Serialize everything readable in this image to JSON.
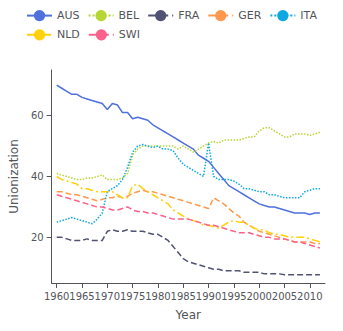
{
  "chart_data": {
    "type": "line",
    "xlabel": "Year",
    "ylabel": "Unionization",
    "xlim": [
      1959,
      2013
    ],
    "ylim": [
      5,
      75
    ],
    "xticks": [
      1960,
      1965,
      1970,
      1975,
      1980,
      1985,
      1990,
      1995,
      2000,
      2005,
      2010
    ],
    "yticks": [
      20,
      40,
      60
    ],
    "grid": false,
    "legend": "top",
    "x": [
      1960,
      1961,
      1962,
      1963,
      1964,
      1965,
      1966,
      1967,
      1968,
      1969,
      1970,
      1971,
      1972,
      1973,
      1974,
      1975,
      1976,
      1977,
      1978,
      1979,
      1980,
      1981,
      1982,
      1983,
      1984,
      1985,
      1986,
      1987,
      1988,
      1989,
      1990,
      1991,
      1992,
      1993,
      1994,
      1995,
      1996,
      1997,
      1998,
      1999,
      2000,
      2001,
      2002,
      2003,
      2004,
      2005,
      2006,
      2007,
      2008,
      2009,
      2010,
      2011,
      2012
    ],
    "series": [
      {
        "name": "AUS",
        "line_style": "solid",
        "values": [
          70,
          69,
          68,
          67,
          67,
          66,
          65.5,
          65,
          64.5,
          64,
          62,
          64,
          63.5,
          61,
          61,
          59,
          59.5,
          59,
          58.5,
          57,
          56,
          55,
          54,
          53,
          52,
          51,
          50,
          49,
          47,
          46,
          45,
          43,
          41,
          39,
          37,
          36,
          35,
          34,
          33,
          32,
          31,
          30.5,
          30,
          30,
          29.5,
          29,
          28.5,
          28,
          28,
          28,
          27.5,
          28,
          28
        ]
      },
      {
        "name": "BEL",
        "line_style": "dotted",
        "values": [
          41,
          40.5,
          40,
          39.5,
          39,
          39,
          39.5,
          39.5,
          40,
          40.5,
          39,
          39,
          39,
          39.5,
          41,
          47,
          49,
          50,
          50,
          50,
          50,
          50,
          50,
          50,
          49,
          50,
          49,
          48,
          49,
          50,
          51,
          51.5,
          51,
          52,
          52,
          52,
          52,
          52.5,
          53,
          53,
          55,
          56,
          56,
          55,
          54,
          53,
          53,
          54,
          54,
          54,
          53.5,
          54,
          54.5
        ]
      },
      {
        "name": "FRA",
        "line_style": "dashed",
        "values": [
          20,
          20,
          19.5,
          19,
          19,
          19,
          19.5,
          19,
          19,
          19,
          22,
          22.5,
          22,
          22,
          22.5,
          22,
          22,
          22,
          21.5,
          21,
          21,
          20,
          19,
          17,
          15,
          13,
          12,
          11.5,
          11,
          10.5,
          10,
          9.5,
          9.5,
          9,
          9,
          9,
          9,
          8.5,
          8.5,
          8.5,
          8.5,
          8,
          8,
          8,
          8,
          7.7,
          7.7,
          7.7,
          7.7,
          7.7,
          7.7,
          7.7,
          7.7
        ]
      },
      {
        "name": "GER",
        "line_style": "dashed",
        "values": [
          35,
          35,
          34.5,
          34,
          34,
          33.5,
          33,
          32.5,
          32,
          32.5,
          33,
          33,
          33.5,
          33,
          33.5,
          34.5,
          35,
          35.5,
          35,
          35,
          34.5,
          34,
          33.5,
          33,
          32.5,
          32,
          31.5,
          31,
          30.5,
          30,
          29.5,
          33,
          32,
          31,
          29.5,
          28,
          27,
          25,
          24,
          23,
          22,
          21.5,
          21,
          20.5,
          20,
          19.5,
          19,
          18.5,
          18.5,
          18.5,
          18.5,
          18,
          18
        ]
      },
      {
        "name": "ITA",
        "line_style": "dotted",
        "values": [
          25,
          25.5,
          26,
          26.5,
          26,
          25.5,
          25,
          24.5,
          26,
          28,
          35,
          36,
          37,
          39,
          43,
          48,
          50,
          50.5,
          50,
          49.5,
          50,
          49,
          49,
          48.5,
          46,
          44,
          43,
          42,
          41,
          40,
          51,
          40,
          39,
          39,
          39,
          38.5,
          37.5,
          36,
          36,
          35.5,
          35,
          35,
          34,
          34,
          33.5,
          33,
          33,
          33,
          33,
          35,
          35.5,
          36,
          36
        ]
      },
      {
        "name": "NLD",
        "line_style": "dashdot",
        "values": [
          40,
          39,
          38.5,
          38,
          37.5,
          36,
          36,
          35.5,
          35,
          35,
          35,
          35,
          34,
          33,
          33,
          37,
          37.5,
          36,
          35,
          34,
          33,
          32,
          31,
          29,
          28,
          27,
          26,
          25.5,
          25,
          24,
          24,
          23.5,
          23,
          24,
          25,
          25.5,
          25,
          25,
          24,
          23,
          22.5,
          22.5,
          21.5,
          21,
          21,
          20.5,
          20,
          20,
          20,
          20,
          19.5,
          19,
          18.5
        ]
      },
      {
        "name": "SWI",
        "line_style": "dashed",
        "values": [
          34,
          33.5,
          33,
          32.5,
          32,
          31.5,
          31,
          30.5,
          30,
          30,
          29.5,
          29,
          29,
          29.5,
          30,
          29,
          28.5,
          28.5,
          28,
          28,
          27.5,
          27,
          26.5,
          26,
          26,
          26,
          26,
          25.5,
          25,
          24.5,
          24,
          24,
          23.5,
          23,
          22.5,
          22,
          21.5,
          21.5,
          21.5,
          21,
          20.5,
          20,
          20,
          19.5,
          19.5,
          19.5,
          19,
          18.5,
          18.5,
          18,
          17.5,
          17,
          16.5
        ]
      }
    ]
  }
}
